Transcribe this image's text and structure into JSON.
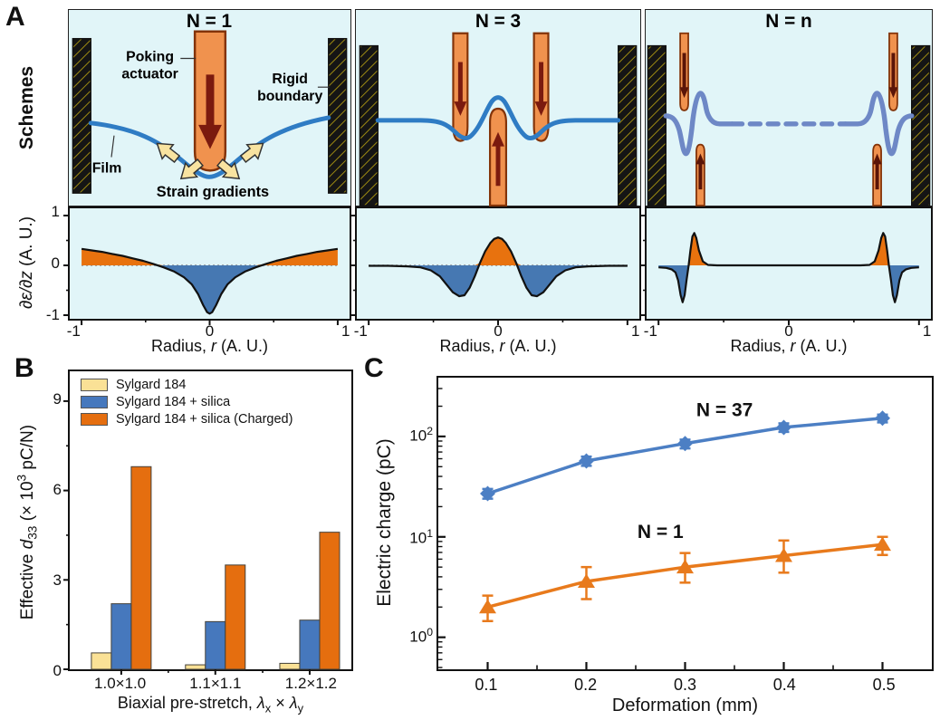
{
  "colors": {
    "scheme_bg": "#E1F5F8",
    "film_blue": "#2F7CC4",
    "film_blue_light": "#6E88C6",
    "actuator_fill": "#F0924E",
    "actuator_stroke": "#833308",
    "red_arrow": "#7B1A0E",
    "yellow_arrow": "#F8E3A0",
    "pos_fill": "#E8720E",
    "neg_fill": "#4678B2",
    "bar_yellow": "#FAE196",
    "bar_blue": "#4678BD",
    "bar_orange": "#E56E0F",
    "line_blue": "#4C7FC4",
    "line_orange": "#E87A1C"
  },
  "panel_a": {
    "label": "A",
    "row_label": "Schemes",
    "schemes": [
      {
        "title": "N = 1",
        "annotations": {
          "poking_1": "Poking",
          "poking_2": "actuator",
          "rigid_1": "Rigid",
          "rigid_2": "boundary",
          "film": "Film",
          "strain": "Strain gradients"
        }
      },
      {
        "title": "N = 3"
      },
      {
        "title": "N = n"
      }
    ]
  },
  "panel_b": {
    "label": "B"
  },
  "panel_c": {
    "label": "C"
  },
  "chart_data": [
    {
      "id": "strain_n1",
      "type": "area",
      "x": [
        -1,
        -0.92,
        -0.84,
        -0.76,
        -0.68,
        -0.6,
        -0.52,
        -0.44,
        -0.36,
        -0.28,
        -0.2,
        -0.14,
        -0.09,
        -0.05,
        -0.02,
        0,
        0.02,
        0.05,
        0.09,
        0.14,
        0.2,
        0.28,
        0.36,
        0.44,
        0.52,
        0.6,
        0.68,
        0.76,
        0.84,
        0.92,
        1
      ],
      "y": [
        0.33,
        0.3,
        0.27,
        0.23,
        0.19,
        0.14,
        0.09,
        0.03,
        -0.04,
        -0.12,
        -0.24,
        -0.38,
        -0.58,
        -0.8,
        -0.94,
        -0.97,
        -0.94,
        -0.8,
        -0.58,
        -0.38,
        -0.24,
        -0.12,
        -0.04,
        0.03,
        0.09,
        0.14,
        0.19,
        0.23,
        0.27,
        0.3,
        0.33
      ],
      "xlim": [
        -1.05,
        1.05
      ],
      "ylim": [
        -1.15,
        1.15
      ],
      "xticks": [
        -1,
        0,
        1
      ],
      "xminor": [
        -0.5,
        0.5
      ],
      "yticks": [
        1,
        0,
        -1
      ],
      "yminor": [
        0.5,
        -0.5
      ],
      "xtick_labels": [
        "-1",
        "0",
        "1"
      ],
      "ytick_labels": [
        "1",
        "0",
        "-1"
      ],
      "ylabel_parts": {
        "var": "∂ε/∂z",
        "post": " (A. U.)"
      },
      "xlabel_parts": {
        "pre": "Radius, ",
        "var": "r",
        "post": " (A. U.)"
      },
      "zero_line": "dotted"
    },
    {
      "id": "strain_n3",
      "type": "area",
      "x": [
        -1,
        -0.85,
        -0.7,
        -0.6,
        -0.52,
        -0.45,
        -0.4,
        -0.35,
        -0.3,
        -0.26,
        -0.22,
        -0.18,
        -0.14,
        -0.1,
        -0.06,
        -0.03,
        0,
        0.03,
        0.06,
        0.1,
        0.14,
        0.18,
        0.22,
        0.26,
        0.3,
        0.35,
        0.4,
        0.45,
        0.52,
        0.6,
        0.7,
        0.85,
        1
      ],
      "y": [
        -0.01,
        -0.01,
        -0.02,
        -0.04,
        -0.1,
        -0.22,
        -0.38,
        -0.54,
        -0.62,
        -0.6,
        -0.45,
        -0.22,
        0.05,
        0.28,
        0.45,
        0.53,
        0.56,
        0.53,
        0.45,
        0.28,
        0.05,
        -0.22,
        -0.45,
        -0.6,
        -0.62,
        -0.54,
        -0.38,
        -0.22,
        -0.1,
        -0.04,
        -0.02,
        -0.01,
        -0.01
      ],
      "xlim": [
        -1.05,
        1.05
      ],
      "ylim": [
        -1.15,
        1.15
      ],
      "xticks": [
        -1,
        0,
        1
      ],
      "xminor": [
        -0.5,
        0.5
      ],
      "yticks": [
        1,
        0,
        -1
      ],
      "yminor": [
        0.5,
        -0.5
      ],
      "xtick_labels": [
        "-1",
        "0",
        "1"
      ],
      "xlabel_parts": {
        "pre": "Radius, ",
        "var": "r",
        "post": " (A. U.)"
      },
      "zero_line": "dotted"
    },
    {
      "id": "strain_nn",
      "type": "area",
      "x": [
        -1,
        -0.94,
        -0.9,
        -0.87,
        -0.85,
        -0.83,
        -0.815,
        -0.8,
        -0.785,
        -0.77,
        -0.755,
        -0.74,
        -0.725,
        -0.71,
        -0.69,
        -0.66,
        -0.62,
        -0.55,
        0,
        0.55,
        0.62,
        0.66,
        0.69,
        0.71,
        0.725,
        0.74,
        0.755,
        0.77,
        0.785,
        0.8,
        0.815,
        0.83,
        0.85,
        0.87,
        0.9,
        0.94,
        1
      ],
      "y": [
        -0.04,
        -0.05,
        -0.08,
        -0.14,
        -0.3,
        -0.6,
        -0.74,
        -0.6,
        -0.3,
        -0.02,
        0.3,
        0.58,
        0.65,
        0.55,
        0.3,
        0.08,
        0.01,
        0,
        0,
        0,
        0.01,
        0.08,
        0.3,
        0.55,
        0.65,
        0.58,
        0.3,
        -0.02,
        -0.3,
        -0.6,
        -0.74,
        -0.6,
        -0.3,
        -0.14,
        -0.08,
        -0.05,
        -0.04
      ],
      "xlim": [
        -1.05,
        1.05
      ],
      "ylim": [
        -1.15,
        1.15
      ],
      "xticks": [
        -1,
        0,
        1
      ],
      "xminor": [
        -0.5,
        0.5
      ],
      "yticks": [
        1,
        0,
        -1
      ],
      "yminor": [
        0.5,
        -0.5
      ],
      "xtick_labels": [
        "-1",
        "0",
        "1"
      ],
      "xlabel_parts": {
        "pre": "Radius, ",
        "var": "r",
        "post": " (A. U.)"
      },
      "zero_line": "dashed",
      "dash_span": [
        -0.58,
        0.58
      ]
    },
    {
      "id": "d33_bar",
      "type": "bar",
      "categories": [
        "1.0×1.0",
        "1.1×1.1",
        "1.2×1.2"
      ],
      "series": [
        {
          "name": "Sylgard 184",
          "color_key": "bar_yellow",
          "values": [
            0.55,
            0.15,
            0.2
          ]
        },
        {
          "name": "Sylgard 184 + silica",
          "color_key": "bar_blue",
          "values": [
            2.2,
            1.6,
            1.65
          ]
        },
        {
          "name": "Sylgard 184 + silica (Charged)",
          "color_key": "bar_orange",
          "values": [
            6.8,
            3.5,
            4.6
          ]
        }
      ],
      "ylim": [
        0,
        10
      ],
      "yticks": [
        0,
        3,
        6,
        9
      ],
      "yminor": [
        1.5,
        4.5,
        7.5
      ],
      "ytick_labels": [
        "9",
        "6",
        "3",
        "0"
      ],
      "ylabel_parts": {
        "pre": "Effective ",
        "var": "d",
        "sub": "33",
        "mid": " (× 10",
        "sup": "3",
        "post": " pC/N)"
      },
      "xlabel_parts": {
        "pre": "Biaxial pre-stretch, ",
        "var1": "λ",
        "sub1": "x",
        "mid": " × ",
        "var2": "λ",
        "sub2": "y"
      }
    },
    {
      "id": "charge_line",
      "type": "line",
      "log_y": true,
      "x": [
        0.1,
        0.2,
        0.3,
        0.4,
        0.5
      ],
      "series": [
        {
          "name": "N = 37",
          "marker": "diamond",
          "color_key": "line_blue",
          "values": [
            27,
            57,
            85,
            123,
            152
          ],
          "err_low": [
            24,
            51,
            76,
            111,
            138
          ],
          "err_high": [
            30,
            63,
            93,
            135,
            165
          ]
        },
        {
          "name": "N = 1",
          "marker": "triangle",
          "color_key": "line_orange",
          "values": [
            2.0,
            3.6,
            5.0,
            6.5,
            8.4
          ],
          "err_low": [
            1.45,
            2.4,
            3.5,
            4.4,
            6.6
          ],
          "err_high": [
            2.6,
            5.0,
            6.9,
            9.2,
            10.0
          ]
        }
      ],
      "annotations": [
        {
          "text": "N = 37",
          "x": 0.34,
          "y": 160
        },
        {
          "text": "N = 1",
          "x": 0.275,
          "y": 9.8
        }
      ],
      "xlim": [
        0.05,
        0.55
      ],
      "ylim": [
        0.48,
        385
      ],
      "xticks": [
        0.1,
        0.2,
        0.3,
        0.4,
        0.5
      ],
      "xminor": [
        0.15,
        0.25,
        0.35,
        0.45
      ],
      "xtick_labels": [
        "0.1",
        "0.2",
        "0.3",
        "0.4",
        "0.5"
      ],
      "yticks": [
        1,
        10,
        100
      ],
      "ytick_base": "10",
      "ytick_exponents": [
        "2",
        "1",
        "0"
      ],
      "ylabel": "Electric charge (pC)",
      "xlabel": "Deformation (mm)"
    }
  ]
}
